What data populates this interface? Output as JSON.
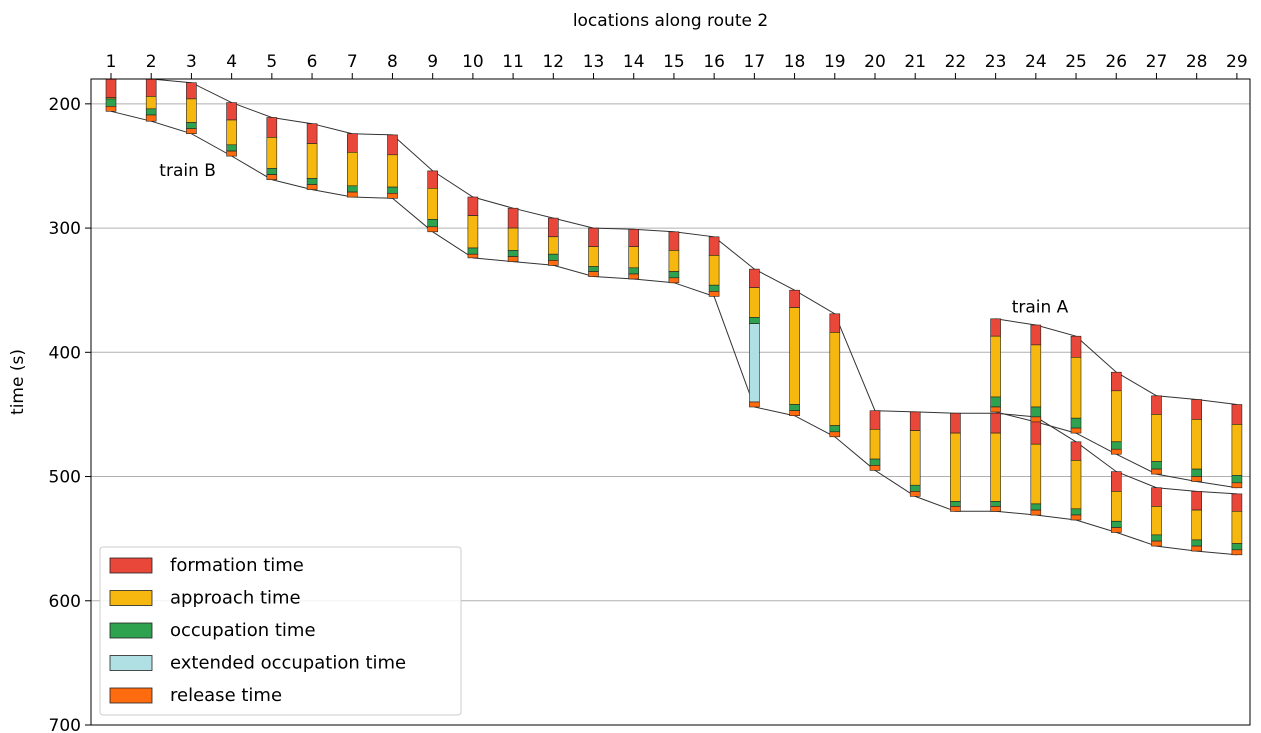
{
  "chart_data": {
    "type": "bar",
    "xlabel": "locations along route 2",
    "ylabel": "time (s)",
    "xlabel_position": "top",
    "x_categories": [
      1,
      2,
      3,
      4,
      5,
      6,
      7,
      8,
      9,
      10,
      11,
      12,
      13,
      14,
      15,
      16,
      17,
      18,
      19,
      20,
      21,
      22,
      23,
      24,
      25,
      26,
      27,
      28,
      29
    ],
    "ylim": [
      700,
      180
    ],
    "y_inverted": true,
    "yticks": [
      200,
      300,
      400,
      500,
      600,
      700
    ],
    "grid": "horizontal",
    "legend_position": "lower-left",
    "legend": [
      {
        "key": "formation",
        "label": "formation time",
        "color": "#e8473a"
      },
      {
        "key": "approach",
        "label": "approach time",
        "color": "#f6b80e"
      },
      {
        "key": "occupation",
        "label": "occupation time",
        "color": "#2ea24e"
      },
      {
        "key": "extended",
        "label": "extended occupation time",
        "color": "#b0dfe4"
      },
      {
        "key": "release",
        "label": "release time",
        "color": "#ff6b0f"
      }
    ],
    "annotations": [
      {
        "text": "train B",
        "x": 2.2,
        "y": 258
      },
      {
        "text": "train A",
        "x": 23.4,
        "y": 368
      }
    ],
    "series": [
      {
        "name": "train B",
        "stacks": [
          {
            "loc": 1,
            "segments": [
              [
                "formation",
                180,
                195
              ],
              [
                "approach",
                195,
                196
              ],
              [
                "occupation",
                196,
                202
              ],
              [
                "release",
                202,
                206
              ]
            ]
          },
          {
            "loc": 2,
            "segments": [
              [
                "formation",
                180,
                194
              ],
              [
                "approach",
                194,
                204
              ],
              [
                "occupation",
                204,
                209
              ],
              [
                "release",
                209,
                214
              ]
            ]
          },
          {
            "loc": 3,
            "segments": [
              [
                "formation",
                183,
                196
              ],
              [
                "approach",
                196,
                215
              ],
              [
                "occupation",
                215,
                220
              ],
              [
                "release",
                220,
                224
              ]
            ]
          },
          {
            "loc": 4,
            "segments": [
              [
                "formation",
                199,
                213
              ],
              [
                "approach",
                213,
                233
              ],
              [
                "occupation",
                233,
                238
              ],
              [
                "release",
                238,
                242
              ]
            ]
          },
          {
            "loc": 5,
            "segments": [
              [
                "formation",
                211,
                227
              ],
              [
                "approach",
                227,
                252
              ],
              [
                "occupation",
                252,
                257
              ],
              [
                "release",
                257,
                261
              ]
            ]
          },
          {
            "loc": 6,
            "segments": [
              [
                "formation",
                216,
                232
              ],
              [
                "approach",
                232,
                260
              ],
              [
                "occupation",
                260,
                265
              ],
              [
                "release",
                265,
                269
              ]
            ]
          },
          {
            "loc": 7,
            "segments": [
              [
                "formation",
                224,
                239
              ],
              [
                "approach",
                239,
                266
              ],
              [
                "occupation",
                266,
                271
              ],
              [
                "release",
                271,
                275
              ]
            ]
          },
          {
            "loc": 8,
            "segments": [
              [
                "formation",
                225,
                241
              ],
              [
                "approach",
                241,
                267
              ],
              [
                "occupation",
                267,
                272
              ],
              [
                "release",
                272,
                276
              ]
            ]
          },
          {
            "loc": 9,
            "segments": [
              [
                "formation",
                254,
                268
              ],
              [
                "approach",
                268,
                293
              ],
              [
                "occupation",
                293,
                299
              ],
              [
                "release",
                299,
                303
              ]
            ]
          },
          {
            "loc": 10,
            "segments": [
              [
                "formation",
                275,
                290
              ],
              [
                "approach",
                290,
                316
              ],
              [
                "occupation",
                316,
                321
              ],
              [
                "release",
                321,
                324
              ]
            ]
          },
          {
            "loc": 11,
            "segments": [
              [
                "formation",
                284,
                300
              ],
              [
                "approach",
                300,
                318
              ],
              [
                "occupation",
                318,
                323
              ],
              [
                "release",
                323,
                327
              ]
            ]
          },
          {
            "loc": 12,
            "segments": [
              [
                "formation",
                292,
                307
              ],
              [
                "approach",
                307,
                321
              ],
              [
                "occupation",
                321,
                326
              ],
              [
                "release",
                326,
                330
              ]
            ]
          },
          {
            "loc": 13,
            "segments": [
              [
                "formation",
                300,
                315
              ],
              [
                "approach",
                315,
                331
              ],
              [
                "occupation",
                331,
                335
              ],
              [
                "release",
                335,
                339
              ]
            ]
          },
          {
            "loc": 14,
            "segments": [
              [
                "formation",
                301,
                315
              ],
              [
                "approach",
                315,
                332
              ],
              [
                "occupation",
                332,
                337
              ],
              [
                "release",
                337,
                341
              ]
            ]
          },
          {
            "loc": 15,
            "segments": [
              [
                "formation",
                303,
                318
              ],
              [
                "approach",
                318,
                335
              ],
              [
                "occupation",
                335,
                340
              ],
              [
                "release",
                340,
                344
              ]
            ]
          },
          {
            "loc": 16,
            "segments": [
              [
                "formation",
                307,
                322
              ],
              [
                "approach",
                322,
                346
              ],
              [
                "occupation",
                346,
                351
              ],
              [
                "release",
                351,
                355
              ]
            ]
          },
          {
            "loc": 17,
            "segments": [
              [
                "formation",
                333,
                348
              ],
              [
                "approach",
                348,
                372
              ],
              [
                "occupation",
                372,
                377
              ],
              [
                "extended",
                377,
                440
              ],
              [
                "release",
                440,
                444
              ]
            ]
          },
          {
            "loc": 18,
            "segments": [
              [
                "formation",
                350,
                364
              ],
              [
                "approach",
                364,
                442
              ],
              [
                "occupation",
                442,
                447
              ],
              [
                "release",
                447,
                451
              ]
            ]
          },
          {
            "loc": 19,
            "segments": [
              [
                "formation",
                369,
                384
              ],
              [
                "approach",
                384,
                459
              ],
              [
                "occupation",
                459,
                464
              ],
              [
                "release",
                464,
                468
              ]
            ]
          },
          {
            "loc": 20,
            "segments": [
              [
                "formation",
                447,
                462
              ],
              [
                "approach",
                462,
                486
              ],
              [
                "occupation",
                486,
                491
              ],
              [
                "release",
                491,
                495
              ]
            ]
          },
          {
            "loc": 21,
            "segments": [
              [
                "formation",
                448,
                463
              ],
              [
                "approach",
                463,
                507
              ],
              [
                "occupation",
                507,
                512
              ],
              [
                "release",
                512,
                516
              ]
            ]
          },
          {
            "loc": 22,
            "segments": [
              [
                "formation",
                449,
                465
              ],
              [
                "approach",
                465,
                520
              ],
              [
                "occupation",
                520,
                524
              ],
              [
                "release",
                524,
                528
              ]
            ]
          },
          {
            "loc": 23,
            "segments": [
              [
                "formation",
                449,
                465
              ],
              [
                "approach",
                465,
                520
              ],
              [
                "occupation",
                520,
                524
              ],
              [
                "release",
                524,
                528
              ]
            ]
          },
          {
            "loc": 24,
            "segments": [
              [
                "formation",
                452,
                474
              ],
              [
                "approach",
                474,
                522
              ],
              [
                "occupation",
                522,
                527
              ],
              [
                "release",
                527,
                531
              ]
            ]
          },
          {
            "loc": 25,
            "segments": [
              [
                "formation",
                472,
                487
              ],
              [
                "approach",
                487,
                526
              ],
              [
                "occupation",
                526,
                531
              ],
              [
                "release",
                531,
                535
              ]
            ]
          },
          {
            "loc": 26,
            "segments": [
              [
                "formation",
                496,
                512
              ],
              [
                "approach",
                512,
                536
              ],
              [
                "occupation",
                536,
                541
              ],
              [
                "release",
                541,
                545
              ]
            ]
          },
          {
            "loc": 27,
            "segments": [
              [
                "formation",
                509,
                524
              ],
              [
                "approach",
                524,
                547
              ],
              [
                "occupation",
                547,
                552
              ],
              [
                "release",
                552,
                556
              ]
            ]
          },
          {
            "loc": 28,
            "segments": [
              [
                "formation",
                512,
                527
              ],
              [
                "approach",
                527,
                551
              ],
              [
                "occupation",
                551,
                556
              ],
              [
                "release",
                556,
                560
              ]
            ]
          },
          {
            "loc": 29,
            "segments": [
              [
                "formation",
                514,
                528
              ],
              [
                "approach",
                528,
                554
              ],
              [
                "occupation",
                554,
                559
              ],
              [
                "release",
                559,
                563
              ]
            ]
          }
        ]
      },
      {
        "name": "train A",
        "stacks": [
          {
            "loc": 23,
            "segments": [
              [
                "formation",
                373,
                387
              ],
              [
                "approach",
                387,
                436
              ],
              [
                "occupation",
                436,
                444
              ],
              [
                "release",
                444,
                448
              ]
            ]
          },
          {
            "loc": 24,
            "segments": [
              [
                "formation",
                378,
                394
              ],
              [
                "approach",
                394,
                444
              ],
              [
                "occupation",
                444,
                452
              ],
              [
                "release",
                452,
                456
              ]
            ]
          },
          {
            "loc": 25,
            "segments": [
              [
                "formation",
                387,
                404
              ],
              [
                "approach",
                404,
                453
              ],
              [
                "occupation",
                453,
                461
              ],
              [
                "release",
                461,
                465
              ]
            ]
          },
          {
            "loc": 26,
            "segments": [
              [
                "formation",
                416,
                431
              ],
              [
                "approach",
                431,
                472
              ],
              [
                "occupation",
                472,
                478
              ],
              [
                "release",
                478,
                482
              ]
            ]
          },
          {
            "loc": 27,
            "segments": [
              [
                "formation",
                435,
                450
              ],
              [
                "approach",
                450,
                488
              ],
              [
                "occupation",
                488,
                494
              ],
              [
                "release",
                494,
                498
              ]
            ]
          },
          {
            "loc": 28,
            "segments": [
              [
                "formation",
                438,
                454
              ],
              [
                "approach",
                454,
                494
              ],
              [
                "occupation",
                494,
                500
              ],
              [
                "release",
                500,
                504
              ]
            ]
          },
          {
            "loc": 29,
            "segments": [
              [
                "formation",
                442,
                458
              ],
              [
                "approach",
                458,
                499
              ],
              [
                "occupation",
                499,
                505
              ],
              [
                "release",
                505,
                509
              ]
            ]
          }
        ]
      }
    ]
  }
}
